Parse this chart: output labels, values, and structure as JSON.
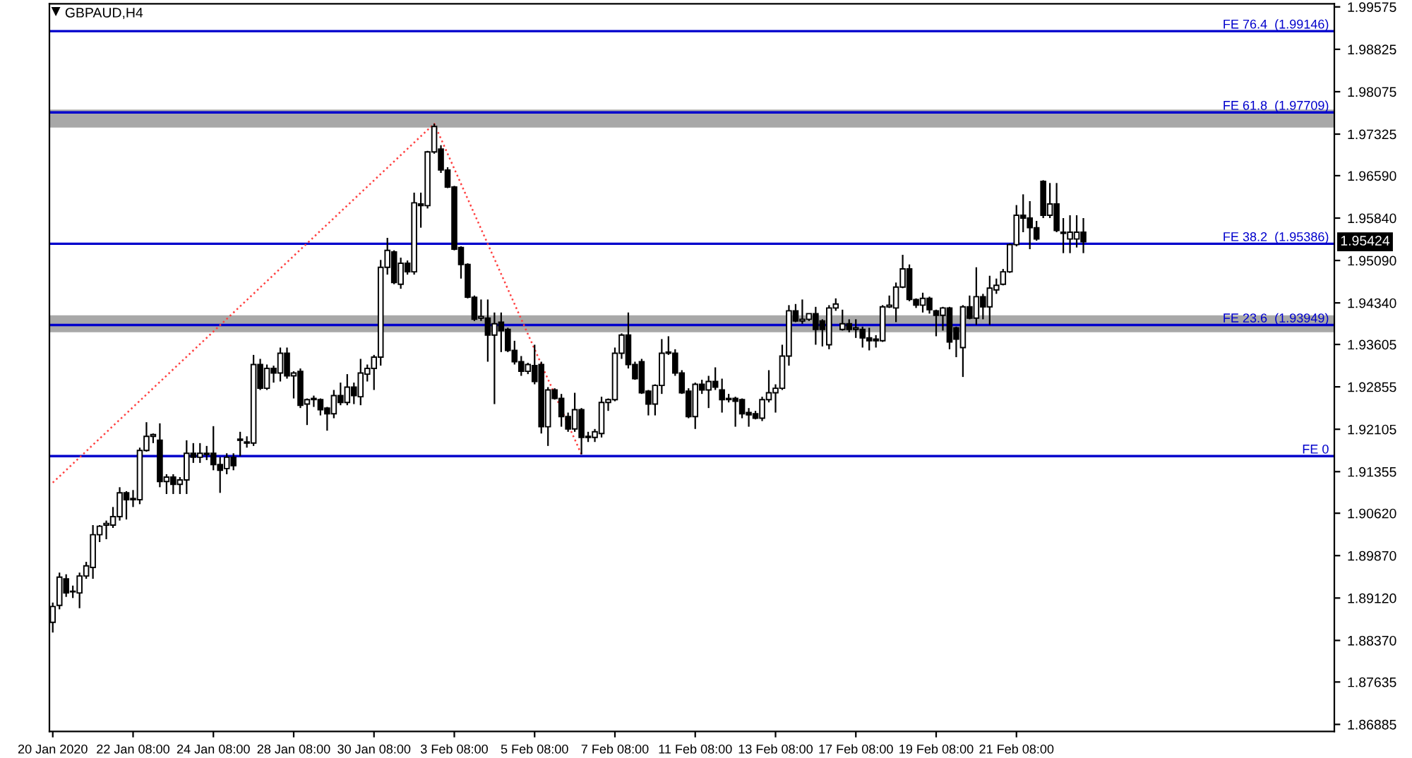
{
  "chart_data": {
    "type": "candlestick",
    "title": "GBPAUD,H4",
    "categories": [
      "20 Jan 2020",
      null,
      null,
      null,
      null,
      null,
      null,
      null,
      null,
      null,
      null,
      null,
      "22 Jan 08:00",
      null,
      null,
      null,
      null,
      null,
      null,
      null,
      null,
      null,
      null,
      null,
      "24 Jan 08:00",
      null,
      null,
      null,
      null,
      null,
      null,
      null,
      null,
      null,
      null,
      null,
      "28 Jan 08:00",
      null,
      null,
      null,
      null,
      null,
      null,
      null,
      null,
      null,
      null,
      null,
      "30 Jan 08:00",
      null,
      null,
      null,
      null,
      null,
      null,
      null,
      null,
      null,
      null,
      null,
      "3 Feb 08:00",
      null,
      null,
      null,
      null,
      null,
      null,
      null,
      null,
      null,
      null,
      null,
      "5 Feb 08:00",
      null,
      null,
      null,
      null,
      null,
      null,
      null,
      null,
      null,
      null,
      null,
      "7 Feb 08:00",
      null,
      null,
      null,
      null,
      null,
      null,
      null,
      null,
      null,
      null,
      null,
      "11 Feb 08:00",
      null,
      null,
      null,
      null,
      null,
      null,
      null,
      null,
      null,
      null,
      null,
      "13 Feb 08:00",
      null,
      null,
      null,
      null,
      null,
      null,
      null,
      null,
      null,
      null,
      null,
      "17 Feb 08:00",
      null,
      null,
      null,
      null,
      null,
      null,
      null,
      null,
      null,
      null,
      null,
      "19 Feb 08:00",
      null,
      null,
      null,
      null,
      null,
      null,
      null,
      null,
      null,
      null,
      null,
      "21 Feb 08:00",
      null,
      null,
      null,
      null,
      null,
      null,
      null,
      null,
      null,
      null,
      null,
      null,
      null,
      null,
      null,
      null,
      null,
      null,
      null,
      null,
      null,
      null,
      null,
      null,
      null,
      null,
      null,
      null,
      null,
      null,
      null,
      null,
      null,
      null,
      null,
      null,
      null,
      null,
      null,
      null,
      null,
      null,
      null,
      null,
      null,
      null,
      null
    ],
    "ohlc": [
      [
        1.8869,
        1.8904,
        1.8851,
        1.8897
      ],
      [
        1.8899,
        1.8957,
        1.8892,
        1.8949
      ],
      [
        1.8946,
        1.8954,
        1.8914,
        1.8921
      ],
      [
        1.8924,
        1.8934,
        1.8912,
        1.8923
      ],
      [
        1.8921,
        1.8957,
        1.8894,
        1.8951
      ],
      [
        1.8951,
        1.8976,
        1.8946,
        1.8969
      ],
      [
        1.8966,
        1.9041,
        1.8946,
        1.9024
      ],
      [
        1.9024,
        1.9041,
        1.9011,
        1.9039
      ],
      [
        1.9041,
        1.9049,
        1.9016,
        1.9044
      ],
      [
        1.9041,
        1.9073,
        1.9036,
        1.9056
      ],
      [
        1.9056,
        1.9108,
        1.9049,
        1.9098
      ],
      [
        1.9098,
        1.9101,
        1.9051,
        1.9086
      ],
      [
        1.9086,
        1.9103,
        1.9073,
        1.9088
      ],
      [
        1.9086,
        1.9178,
        1.9078,
        1.9173
      ],
      [
        1.9173,
        1.9223,
        1.9171,
        1.9198
      ],
      [
        1.9198,
        1.9203,
        1.9186,
        1.9201
      ],
      [
        1.9191,
        1.9221,
        1.9108,
        1.9118
      ],
      [
        1.9118,
        1.9131,
        1.9096,
        1.9126
      ],
      [
        1.9126,
        1.9131,
        1.9096,
        1.9113
      ],
      [
        1.9113,
        1.9126,
        1.9096,
        1.9121
      ],
      [
        1.9121,
        1.9191,
        1.9096,
        1.9168
      ],
      [
        1.9168,
        1.9186,
        1.9151,
        1.9161
      ],
      [
        1.9161,
        1.9186,
        1.9151,
        1.9168
      ],
      [
        1.9168,
        1.9181,
        1.9156,
        1.9166
      ],
      [
        1.9168,
        1.9216,
        1.9138,
        1.9148
      ],
      [
        1.9148,
        1.9161,
        1.9098,
        1.9138
      ],
      [
        1.9141,
        1.9168,
        1.9131,
        1.9161
      ],
      [
        1.9161,
        1.9168,
        1.9138,
        1.9146
      ],
      [
        1.9193,
        1.9206,
        1.9163,
        1.9191
      ],
      [
        1.9188,
        1.9198,
        1.9178,
        1.9186
      ],
      [
        1.9186,
        1.9342,
        1.9181,
        1.9325
      ],
      [
        1.9325,
        1.9335,
        1.928,
        1.9283
      ],
      [
        1.9283,
        1.9325,
        1.928,
        1.9318
      ],
      [
        1.9318,
        1.9323,
        1.9293,
        1.931
      ],
      [
        1.931,
        1.9355,
        1.9295,
        1.9345
      ],
      [
        1.9345,
        1.9355,
        1.93,
        1.9305
      ],
      [
        1.9305,
        1.9313,
        1.9265,
        1.931
      ],
      [
        1.9313,
        1.9318,
        1.9248,
        1.9253
      ],
      [
        1.9255,
        1.9265,
        1.9218,
        1.9263
      ],
      [
        1.9263,
        1.927,
        1.925,
        1.9265
      ],
      [
        1.9263,
        1.9265,
        1.9235,
        1.9245
      ],
      [
        1.9248,
        1.925,
        1.9208,
        1.9238
      ],
      [
        1.9238,
        1.928,
        1.923,
        1.927
      ],
      [
        1.927,
        1.9293,
        1.9253,
        1.9258
      ],
      [
        1.9258,
        1.9308,
        1.9253,
        1.9285
      ],
      [
        1.9285,
        1.9293,
        1.9255,
        1.927
      ],
      [
        1.9268,
        1.9335,
        1.9253,
        1.931
      ],
      [
        1.9308,
        1.9325,
        1.9295,
        1.9318
      ],
      [
        1.9318,
        1.9342,
        1.928,
        1.9338
      ],
      [
        1.9338,
        1.951,
        1.9323,
        1.9497
      ],
      [
        1.9497,
        1.9549,
        1.9484,
        1.9527
      ],
      [
        1.9524,
        1.9527,
        1.9467,
        1.947
      ],
      [
        1.9467,
        1.9514,
        1.9459,
        1.9504
      ],
      [
        1.9504,
        1.9509,
        1.9484,
        1.9489
      ],
      [
        1.9489,
        1.9629,
        1.9484,
        1.9611
      ],
      [
        1.9609,
        1.9629,
        1.9567,
        1.9606
      ],
      [
        1.9606,
        1.9703,
        1.9601,
        1.9701
      ],
      [
        1.9701,
        1.9751,
        1.9698,
        1.9746
      ],
      [
        1.9706,
        1.9713,
        1.9664,
        1.9669
      ],
      [
        1.9669,
        1.9674,
        1.9637,
        1.9639
      ],
      [
        1.9639,
        1.9641,
        1.9527,
        1.9529
      ],
      [
        1.9532,
        1.9534,
        1.9477,
        1.9502
      ],
      [
        1.9502,
        1.9504,
        1.9442,
        1.9444
      ],
      [
        1.9444,
        1.9447,
        1.9402,
        1.9405
      ],
      [
        1.9407,
        1.944,
        1.9402,
        1.941
      ],
      [
        1.9407,
        1.944,
        1.933,
        1.9377
      ],
      [
        1.9377,
        1.9417,
        1.9255,
        1.9397
      ],
      [
        1.94,
        1.9417,
        1.9347,
        1.9385
      ],
      [
        1.9387,
        1.939,
        1.9347,
        1.935
      ],
      [
        1.935,
        1.9367,
        1.9325,
        1.933
      ],
      [
        1.933,
        1.934,
        1.9305,
        1.9313
      ],
      [
        1.9313,
        1.9328,
        1.9308,
        1.9325
      ],
      [
        1.9323,
        1.936,
        1.929,
        1.9295
      ],
      [
        1.9325,
        1.933,
        1.9203,
        1.9215
      ],
      [
        1.9215,
        1.9285,
        1.9181,
        1.928
      ],
      [
        1.928,
        1.9283,
        1.9263,
        1.9265
      ],
      [
        1.9265,
        1.9273,
        1.9215,
        1.9233
      ],
      [
        1.9233,
        1.924,
        1.9206,
        1.9211
      ],
      [
        1.9211,
        1.9275,
        1.9206,
        1.9245
      ],
      [
        1.9245,
        1.9248,
        1.9166,
        1.9196
      ],
      [
        1.9196,
        1.9206,
        1.9188,
        1.9198
      ],
      [
        1.9196,
        1.9211,
        1.9188,
        1.9206
      ],
      [
        1.9203,
        1.9268,
        1.9196,
        1.9258
      ],
      [
        1.9258,
        1.9265,
        1.9243,
        1.9263
      ],
      [
        1.9263,
        1.9355,
        1.926,
        1.9345
      ],
      [
        1.9345,
        1.938,
        1.9335,
        1.9377
      ],
      [
        1.9377,
        1.9417,
        1.9318,
        1.9325
      ],
      [
        1.9325,
        1.933,
        1.9298,
        1.93
      ],
      [
        1.933,
        1.9335,
        1.9273,
        1.9275
      ],
      [
        1.9278,
        1.928,
        1.9235,
        1.9255
      ],
      [
        1.9255,
        1.929,
        1.9235,
        1.9288
      ],
      [
        1.9288,
        1.937,
        1.9273,
        1.9345
      ],
      [
        1.9345,
        1.9375,
        1.9342,
        1.9347
      ],
      [
        1.9345,
        1.9352,
        1.9305,
        1.931
      ],
      [
        1.931,
        1.9315,
        1.9273,
        1.9275
      ],
      [
        1.9278,
        1.9283,
        1.923,
        1.9233
      ],
      [
        1.9233,
        1.9293,
        1.9211,
        1.929
      ],
      [
        1.929,
        1.9298,
        1.9273,
        1.928
      ],
      [
        1.928,
        1.9305,
        1.9248,
        1.9295
      ],
      [
        1.9295,
        1.932,
        1.928,
        1.9285
      ],
      [
        1.928,
        1.93,
        1.924,
        1.9263
      ],
      [
        1.9263,
        1.9273,
        1.9258,
        1.9265
      ],
      [
        1.9265,
        1.9268,
        1.9215,
        1.926
      ],
      [
        1.9263,
        1.9265,
        1.923,
        1.9238
      ],
      [
        1.924,
        1.9248,
        1.9215,
        1.9236
      ],
      [
        1.9238,
        1.9243,
        1.9228,
        1.923
      ],
      [
        1.923,
        1.9268,
        1.9225,
        1.9263
      ],
      [
        1.9263,
        1.9315,
        1.9258,
        1.9275
      ],
      [
        1.9275,
        1.929,
        1.924,
        1.9283
      ],
      [
        1.9283,
        1.936,
        1.928,
        1.934
      ],
      [
        1.934,
        1.943,
        1.9323,
        1.942
      ],
      [
        1.942,
        1.9432,
        1.94,
        1.9402
      ],
      [
        1.9402,
        1.944,
        1.9397,
        1.9405
      ],
      [
        1.9405,
        1.9415,
        1.9402,
        1.9415
      ],
      [
        1.9415,
        1.9427,
        1.936,
        1.9387
      ],
      [
        1.9402,
        1.9405,
        1.9357,
        1.9387
      ],
      [
        1.936,
        1.943,
        1.9352,
        1.9425
      ],
      [
        1.9425,
        1.9442,
        1.942,
        1.9432
      ],
      [
        1.9387,
        1.9422,
        1.9385,
        1.9397
      ],
      [
        1.9397,
        1.9405,
        1.9382,
        1.9387
      ],
      [
        1.9387,
        1.9405,
        1.9372,
        1.939
      ],
      [
        1.9387,
        1.9392,
        1.9355,
        1.9372
      ],
      [
        1.9372,
        1.939,
        1.935,
        1.9367
      ],
      [
        1.937,
        1.9377,
        1.9355,
        1.9367
      ],
      [
        1.9367,
        1.943,
        1.9365,
        1.9427
      ],
      [
        1.9427,
        1.9447,
        1.9425,
        1.943
      ],
      [
        1.9425,
        1.947,
        1.94,
        1.9462
      ],
      [
        1.9462,
        1.9519,
        1.946,
        1.9494
      ],
      [
        1.9494,
        1.9502,
        1.9437,
        1.944
      ],
      [
        1.944,
        1.9442,
        1.9425,
        1.943
      ],
      [
        1.943,
        1.9452,
        1.9417,
        1.9442
      ],
      [
        1.9442,
        1.9445,
        1.9415,
        1.9422
      ],
      [
        1.942,
        1.9422,
        1.9375,
        1.9412
      ],
      [
        1.9412,
        1.9427,
        1.9385,
        1.9425
      ],
      [
        1.9425,
        1.9427,
        1.9352,
        1.9365
      ],
      [
        1.939,
        1.9392,
        1.9338,
        1.937
      ],
      [
        1.9355,
        1.943,
        1.9303,
        1.9427
      ],
      [
        1.9427,
        1.9447,
        1.9405,
        1.9407
      ],
      [
        1.9407,
        1.9497,
        1.9395,
        1.9445
      ],
      [
        1.9445,
        1.945,
        1.9405,
        1.9427
      ],
      [
        1.9427,
        1.9482,
        1.9395,
        1.946
      ],
      [
        1.9457,
        1.9477,
        1.945,
        1.9465
      ],
      [
        1.9467,
        1.9494,
        1.9465,
        1.9489
      ],
      [
        1.9489,
        1.9539,
        1.9487,
        1.9537
      ],
      [
        1.9537,
        1.9607,
        1.9534,
        1.9589
      ],
      [
        1.9589,
        1.9626,
        1.9559,
        1.9584
      ],
      [
        1.9584,
        1.9614,
        1.9529,
        1.9567
      ],
      [
        1.9567,
        1.9579,
        1.9544,
        1.9547
      ],
      [
        1.9649,
        1.9651,
        1.9584,
        1.9589
      ],
      [
        1.9589,
        1.9646,
        1.9584,
        1.9609
      ],
      [
        1.9609,
        1.9646,
        1.9559,
        1.9562
      ],
      [
        1.9559,
        1.9584,
        1.9522,
        1.9557
      ],
      [
        1.9547,
        1.9589,
        1.9522,
        1.9559
      ],
      [
        1.9547,
        1.9589,
        1.9532,
        1.9559
      ],
      [
        1.9559,
        1.9584,
        1.9522,
        1.9542
      ],
      null,
      null,
      null,
      null,
      null,
      null,
      null,
      null,
      null,
      null,
      null,
      null,
      null,
      null,
      null,
      null,
      null,
      null,
      null,
      null,
      null,
      null,
      null,
      null,
      null,
      null,
      null,
      null,
      null,
      null,
      null,
      null,
      null,
      null,
      null,
      null,
      null
    ],
    "series": [
      {
        "type": "line",
        "values": [
          1.9116,
          null,
          null,
          null,
          null,
          null,
          null,
          null,
          null,
          null,
          null,
          null,
          null,
          null,
          null,
          null,
          null,
          null,
          null,
          null,
          null,
          null,
          null,
          null,
          null,
          null,
          null,
          null,
          null,
          null,
          null,
          null,
          null,
          null,
          null,
          null,
          null,
          null,
          null,
          null,
          null,
          null,
          null,
          null,
          null,
          null,
          null,
          null,
          null,
          null,
          null,
          null,
          null,
          null,
          null,
          null,
          null,
          1.9751,
          null,
          null,
          null,
          null,
          null,
          null,
          null,
          null,
          null,
          null,
          null,
          null,
          null,
          null,
          null,
          null,
          null,
          null,
          null,
          null,
          null,
          1.9166,
          null,
          null,
          null,
          null,
          null,
          null,
          null,
          null,
          null,
          null,
          null,
          null,
          null,
          null,
          null,
          null,
          null,
          null,
          null,
          null,
          null,
          null,
          null,
          null,
          null,
          null,
          null,
          null,
          null,
          null,
          null,
          null,
          null,
          null,
          null,
          null,
          null,
          null,
          null,
          null,
          null,
          null,
          null,
          null,
          null,
          null,
          null,
          null,
          null,
          null,
          null,
          null,
          null,
          null,
          null,
          null,
          null,
          null,
          null,
          null,
          null,
          null,
          null,
          null,
          null,
          null,
          null,
          null,
          null,
          null,
          null,
          null,
          null,
          null,
          null,
          null,
          null,
          null,
          null,
          null,
          null,
          null,
          null,
          null,
          null,
          null,
          null,
          null,
          null,
          null,
          null,
          null,
          null,
          null,
          null,
          null,
          null,
          null,
          null,
          null,
          null,
          null,
          null,
          null,
          null,
          null,
          null,
          null,
          null,
          null,
          null,
          null
        ],
        "color": "#ff4040",
        "line_style": "dotted"
      }
    ],
    "ylim": [
      1.8676,
      1.9963
    ],
    "yticks": [
      1.99575,
      1.98825,
      1.98075,
      1.97325,
      {
        "value": 1.9659,
        "label": "1.96590"
      },
      {
        "value": 1.9584,
        "label": "1.95840"
      },
      {
        "value": 1.9509,
        "label": "1.95090"
      },
      {
        "value": 1.9434,
        "label": "1.94340"
      },
      1.93605,
      1.92855,
      1.92105,
      1.91355,
      {
        "value": 1.9062,
        "label": "1.90620"
      },
      {
        "value": 1.8987,
        "label": "1.89870"
      },
      {
        "value": 1.8912,
        "label": "1.89120"
      },
      {
        "value": 1.8837,
        "label": "1.88370"
      },
      1.87635,
      1.86885
    ],
    "ref_lines": [
      {
        "axis": "y",
        "value": 1.99146,
        "label": "FE 76.4  (1.99146)",
        "color": "#0000cc"
      },
      {
        "axis": "y",
        "value": 1.97709,
        "label": "FE 61.8  (1.97709)",
        "color": "#0000cc"
      },
      {
        "axis": "y",
        "value": 1.95386,
        "label": "FE 38.2  (1.95386)",
        "color": "#0000cc"
      },
      {
        "axis": "y",
        "value": 1.93949,
        "label": "FE 23.6  (1.93949)",
        "color": "#0000cc"
      },
      {
        "axis": "y",
        "value": 1.9163,
        "label": "FE 0",
        "color": "#0000cc"
      }
    ],
    "bands": [
      {
        "axis": "y",
        "from": 1.9744,
        "to": 1.9776,
        "color": "#a8a8a8"
      },
      {
        "axis": "y",
        "from": 1.9382,
        "to": 1.9412,
        "color": "#a8a8a8"
      }
    ],
    "annotations": [
      "1.95424"
    ],
    "grid": false,
    "legend": false
  }
}
